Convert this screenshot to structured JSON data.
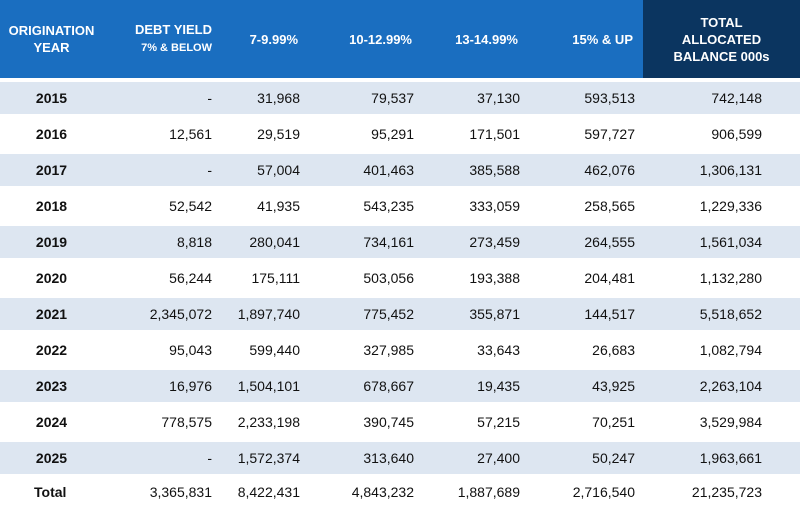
{
  "header": {
    "year": [
      "ORIGINATION",
      "YEAR"
    ],
    "debt_yield_title": "DEBT YIELD",
    "debt_yield_sub": "7% & BELOW",
    "buckets": [
      "7-9.99%",
      "10-12.99%",
      "13-14.99%",
      "15% & UP"
    ],
    "total": [
      "TOTAL",
      "ALLOCATED",
      "BALANCE 000s"
    ]
  },
  "rows": [
    {
      "year": "2015",
      "values": [
        "-",
        "31,968",
        "79,537",
        "37,130",
        "593,513"
      ],
      "total": "742,148"
    },
    {
      "year": "2016",
      "values": [
        "12,561",
        "29,519",
        "95,291",
        "171,501",
        "597,727"
      ],
      "total": "906,599"
    },
    {
      "year": "2017",
      "values": [
        "-",
        "57,004",
        "401,463",
        "385,588",
        "462,076"
      ],
      "total": "1,306,131"
    },
    {
      "year": "2018",
      "values": [
        "52,542",
        "41,935",
        "543,235",
        "333,059",
        "258,565"
      ],
      "total": "1,229,336"
    },
    {
      "year": "2019",
      "values": [
        "8,818",
        "280,041",
        "734,161",
        "273,459",
        "264,555"
      ],
      "total": "1,561,034"
    },
    {
      "year": "2020",
      "values": [
        "56,244",
        "175,111",
        "503,056",
        "193,388",
        "204,481"
      ],
      "total": "1,132,280"
    },
    {
      "year": "2021",
      "values": [
        "2,345,072",
        "1,897,740",
        "775,452",
        "355,871",
        "144,517"
      ],
      "total": "5,518,652"
    },
    {
      "year": "2022",
      "values": [
        "95,043",
        "599,440",
        "327,985",
        "33,643",
        "26,683"
      ],
      "total": "1,082,794"
    },
    {
      "year": "2023",
      "values": [
        "16,976",
        "1,504,101",
        "678,667",
        "19,435",
        "43,925"
      ],
      "total": "2,263,104"
    },
    {
      "year": "2024",
      "values": [
        "778,575",
        "2,233,198",
        "390,745",
        "57,215",
        "70,251"
      ],
      "total": "3,529,984"
    },
    {
      "year": "2025",
      "values": [
        "-",
        "1,572,374",
        "313,640",
        "27,400",
        "50,247"
      ],
      "total": "1,963,661"
    }
  ],
  "totals": {
    "label": "Total",
    "values": [
      "3,365,831",
      "8,422,431",
      "4,843,232",
      "1,887,689",
      "2,716,540"
    ],
    "total": "21,235,723"
  },
  "colors": {
    "header_blue": "#1a6ec0",
    "header_navy": "#0b3560",
    "row_shade": "#dde6f1"
  }
}
